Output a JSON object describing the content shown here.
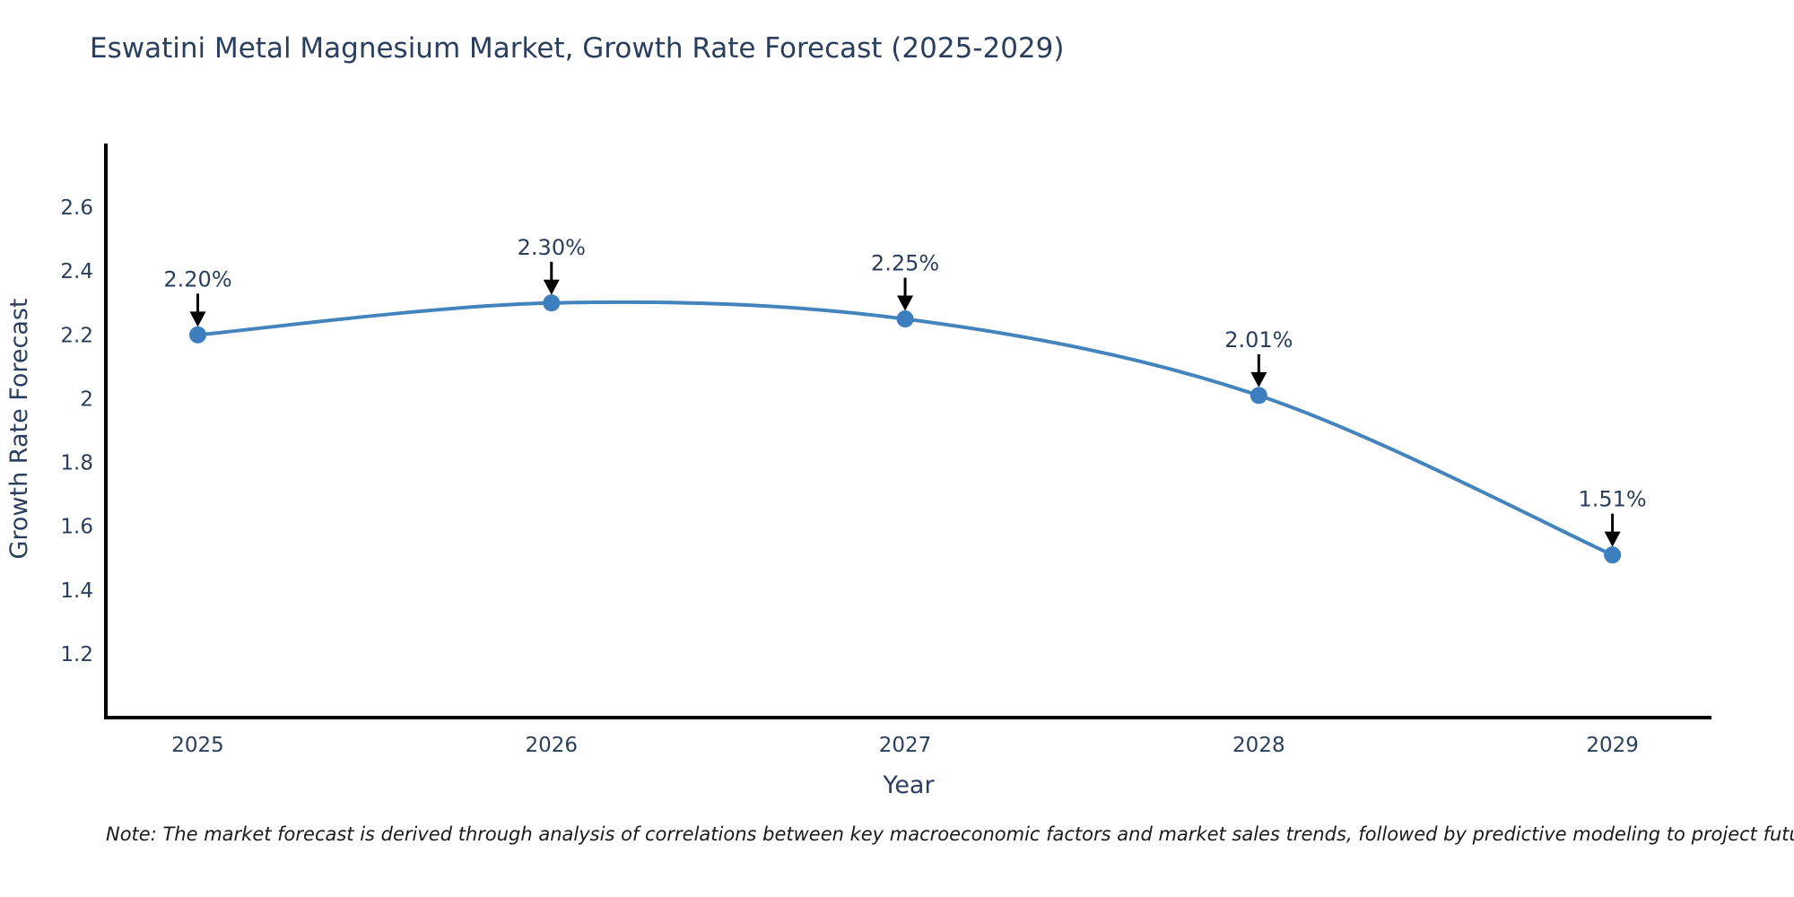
{
  "title": "Eswatini Metal Magnesium Market, Growth Rate Forecast (2025-2029)",
  "note": "Note: The market forecast is derived through analysis of correlations between key macroeconomic factors and market sales trends, followed by predictive modeling to project future sales",
  "chart_data": {
    "type": "line",
    "title": "Eswatini Metal Magnesium Market, Growth Rate Forecast (2025-2029)",
    "xlabel": "Year",
    "ylabel": "Growth Rate Forecast",
    "x": [
      2025,
      2026,
      2027,
      2028,
      2029
    ],
    "values": [
      2.2,
      2.3,
      2.25,
      2.01,
      1.51
    ],
    "point_labels": [
      "2.20%",
      "2.30%",
      "2.25%",
      "2.01%",
      "1.51%"
    ],
    "xticks": [
      {
        "label": "2025",
        "value": 2025
      },
      {
        "label": "2026",
        "value": 2026
      },
      {
        "label": "2027",
        "value": 2027
      },
      {
        "label": "2028",
        "value": 2028
      },
      {
        "label": "2029",
        "value": 2029
      }
    ],
    "yticks": [
      {
        "label": "2.6",
        "value": 2.6
      },
      {
        "label": "2.4",
        "value": 2.4
      },
      {
        "label": "2.2",
        "value": 2.2
      },
      {
        "label": "2",
        "value": 2.0
      },
      {
        "label": "1.8",
        "value": 1.8
      },
      {
        "label": "1.6",
        "value": 1.6
      },
      {
        "label": "1.4",
        "value": 1.4
      },
      {
        "label": "1.2",
        "value": 1.2
      }
    ],
    "xlim": [
      2024.74,
      2029.28
    ],
    "ylim": [
      1.0,
      2.8
    ],
    "grid": false,
    "legend": "none",
    "line_shape": "spline",
    "line_color": "#4484bd",
    "marker_color": "#3d7ebf",
    "axis_color": "#000000",
    "text_color": "#2a3f5f",
    "annotation_arrow_color": "#000000"
  }
}
